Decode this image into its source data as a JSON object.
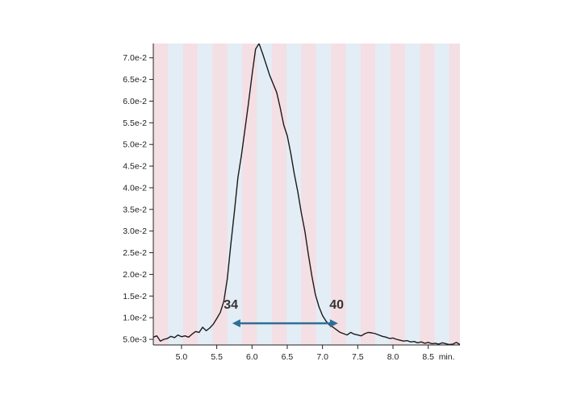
{
  "chart_data": {
    "type": "line",
    "title": "",
    "xlabel": "",
    "ylabel": "",
    "x_unit_label": "min.",
    "xlim": [
      4.6,
      8.95
    ],
    "ylim": [
      0.0037,
      0.0733
    ],
    "x_ticks": [
      5.0,
      5.5,
      6.0,
      6.5,
      7.0,
      7.5,
      8.0,
      8.5
    ],
    "x_tick_labels": [
      "5.0",
      "5.5",
      "6.0",
      "6.5",
      "7.0",
      "7.5",
      "8.0",
      "8.5"
    ],
    "y_ticks": [
      0.005,
      0.01,
      0.015,
      0.02,
      0.025,
      0.03,
      0.035,
      0.04,
      0.045,
      0.05,
      0.055,
      0.06,
      0.065,
      0.07
    ],
    "y_tick_labels": [
      "5.0e-3",
      "1.0e-2",
      "1.5e-2",
      "2.0e-2",
      "2.5e-2",
      "3.0e-2",
      "3.5e-2",
      "4.0e-2",
      "4.5e-2",
      "5.0e-2",
      "5.5e-2",
      "6.0e-2",
      "6.5e-2",
      "7.0e-2"
    ],
    "grid": false,
    "background_stripes": {
      "start": 4.6,
      "width": 0.21,
      "colors": [
        "#f4dfe4",
        "#e3edf6"
      ]
    },
    "line_color": "#1a1a1a",
    "series": [
      {
        "x": [
          4.6,
          4.65,
          4.7,
          4.75,
          4.8,
          4.85,
          4.9,
          4.95,
          5.0,
          5.05,
          5.1,
          5.15,
          5.2,
          5.25,
          5.3,
          5.35,
          5.4,
          5.45,
          5.5,
          5.55,
          5.6,
          5.65,
          5.7,
          5.75,
          5.8,
          5.85,
          5.9,
          5.95,
          6.0,
          6.05,
          6.1,
          6.15,
          6.2,
          6.25,
          6.3,
          6.35,
          6.4,
          6.45,
          6.5,
          6.55,
          6.6,
          6.65,
          6.7,
          6.75,
          6.8,
          6.85,
          6.9,
          6.95,
          7.0,
          7.05,
          7.1,
          7.15,
          7.2,
          7.25,
          7.3,
          7.35,
          7.4,
          7.45,
          7.5,
          7.55,
          7.6,
          7.65,
          7.7,
          7.75,
          7.8,
          7.85,
          7.9,
          7.95,
          8.0,
          8.05,
          8.1,
          8.15,
          8.2,
          8.25,
          8.3,
          8.35,
          8.4,
          8.45,
          8.5,
          8.55,
          8.6,
          8.65,
          8.7,
          8.75,
          8.8,
          8.85,
          8.9,
          8.95
        ],
        "y": [
          0.0055,
          0.0058,
          0.0046,
          0.005,
          0.0052,
          0.0057,
          0.0054,
          0.006,
          0.0056,
          0.0058,
          0.0055,
          0.0062,
          0.0068,
          0.0066,
          0.0078,
          0.007,
          0.0076,
          0.0085,
          0.0098,
          0.0112,
          0.0138,
          0.019,
          0.027,
          0.0345,
          0.0423,
          0.0475,
          0.0535,
          0.0595,
          0.066,
          0.072,
          0.0733,
          0.071,
          0.0685,
          0.066,
          0.064,
          0.062,
          0.0585,
          0.0545,
          0.052,
          0.048,
          0.0432,
          0.039,
          0.0342,
          0.03,
          0.0245,
          0.0195,
          0.0153,
          0.0125,
          0.0105,
          0.0092,
          0.0083,
          0.0078,
          0.0072,
          0.0066,
          0.0063,
          0.006,
          0.0066,
          0.0062,
          0.006,
          0.0058,
          0.0063,
          0.0066,
          0.0065,
          0.0063,
          0.006,
          0.0057,
          0.0055,
          0.0052,
          0.0053,
          0.005,
          0.0048,
          0.0046,
          0.0047,
          0.0044,
          0.0045,
          0.0042,
          0.0044,
          0.0041,
          0.0043,
          0.004,
          0.0041,
          0.0039,
          0.0042,
          0.004,
          0.0038,
          0.0039,
          0.0043,
          0.0038
        ]
      }
    ],
    "annotations": {
      "range_arrow": {
        "x_start": 5.72,
        "x_end": 7.22,
        "y": 0.0087,
        "color": "#2f6f96"
      },
      "start_label": {
        "text": "34",
        "x": 5.7,
        "y": 0.0121
      },
      "end_label": {
        "text": "40",
        "x": 7.2,
        "y": 0.0121
      }
    }
  }
}
